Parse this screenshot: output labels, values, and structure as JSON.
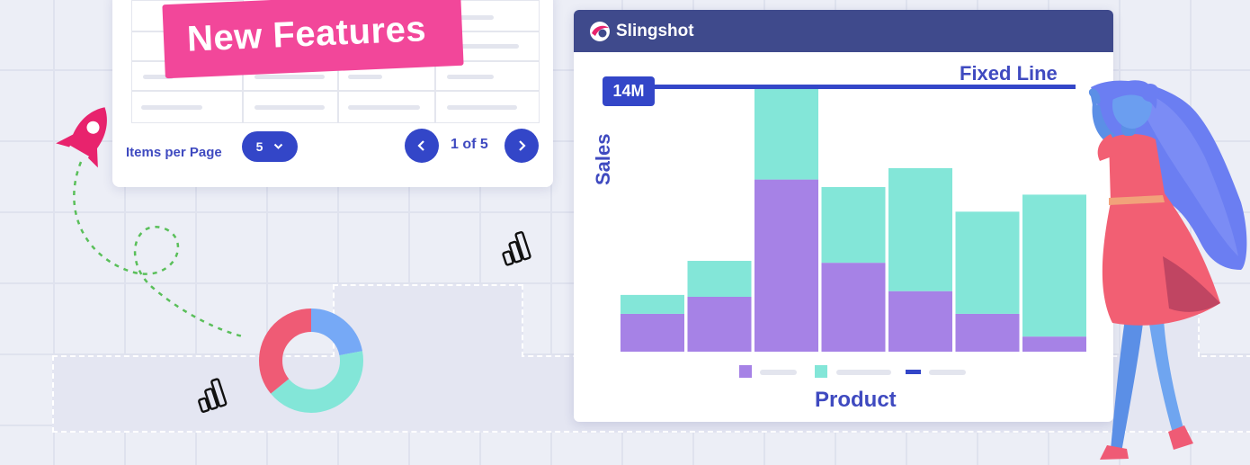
{
  "banner": {
    "title": "New Features"
  },
  "table": {
    "items_per_page_label": "Items per Page",
    "page_size": "5",
    "page_count": "1 of 5"
  },
  "chart_card": {
    "brand": "Slingshot",
    "fixed_line_label": "Fixed Line",
    "fixed_line_value": "14M",
    "colors": {
      "header": "#3f4a8c",
      "series_bottom": "#a682e6",
      "series_top": "#83e6d8",
      "fixed_line": "#3346c8"
    }
  },
  "chart_data": {
    "type": "bar",
    "stacked": true,
    "xlabel": "Product",
    "ylabel": "Sales",
    "ylim": [
      0,
      14.5
    ],
    "series": [
      {
        "values": [
          2.0,
          2.9,
          9.1,
          4.7,
          3.2,
          2.0,
          0.8
        ]
      },
      {
        "values": [
          1.0,
          1.9,
          5.0,
          4.0,
          6.5,
          5.4,
          7.5
        ]
      }
    ],
    "fixed_line": 14
  },
  "decor": {
    "icons": [
      "rocket-icon",
      "bar-chart-icon",
      "donut-chart-icon"
    ],
    "donut_segments": [
      {
        "color": "#76a9f6",
        "value": 22
      },
      {
        "color": "#83e6d8",
        "value": 42
      },
      {
        "color": "#ef5b75",
        "value": 36
      }
    ]
  }
}
